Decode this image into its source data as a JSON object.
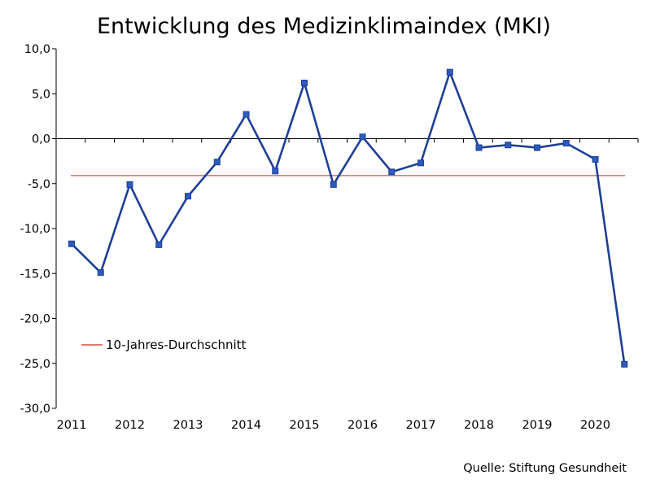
{
  "chart_data": {
    "type": "line",
    "title": "Entwicklung des Medizinklimaindex (MKI)",
    "x": [
      "2011",
      "2011",
      "2012",
      "2012",
      "2013",
      "2013",
      "2014",
      "2014",
      "2015",
      "2015",
      "2016",
      "2016",
      "2017",
      "2017",
      "2018",
      "2018",
      "2019",
      "2019",
      "2020",
      "2020"
    ],
    "x_tick_labels": [
      "2011",
      "2012",
      "2013",
      "2014",
      "2015",
      "2016",
      "2017",
      "2018",
      "2019",
      "2020"
    ],
    "y_tick_labels": [
      "10,0",
      "5,0",
      "0,0",
      "-5,0",
      "-10,0",
      "-15,0",
      "-20,0",
      "-25,0",
      "-30,0"
    ],
    "ylim": [
      -30,
      10
    ],
    "series": [
      {
        "name": "MKI",
        "color": "#1f3f96",
        "values": [
          -11.7,
          -14.9,
          -5.1,
          -11.8,
          -6.4,
          -2.6,
          2.7,
          -3.6,
          6.2,
          -5.1,
          0.2,
          -3.7,
          -2.7,
          7.4,
          -1.0,
          -0.7,
          -1.0,
          -0.5,
          -2.3,
          -25.1
        ]
      }
    ],
    "reference_line": {
      "label": "10-Jahres-Durchschnitt",
      "value": -4.1,
      "color": "#e07b72"
    },
    "legend_position": "bottom-left",
    "grid": false,
    "source": "Quelle: Stiftung Gesundheit"
  }
}
